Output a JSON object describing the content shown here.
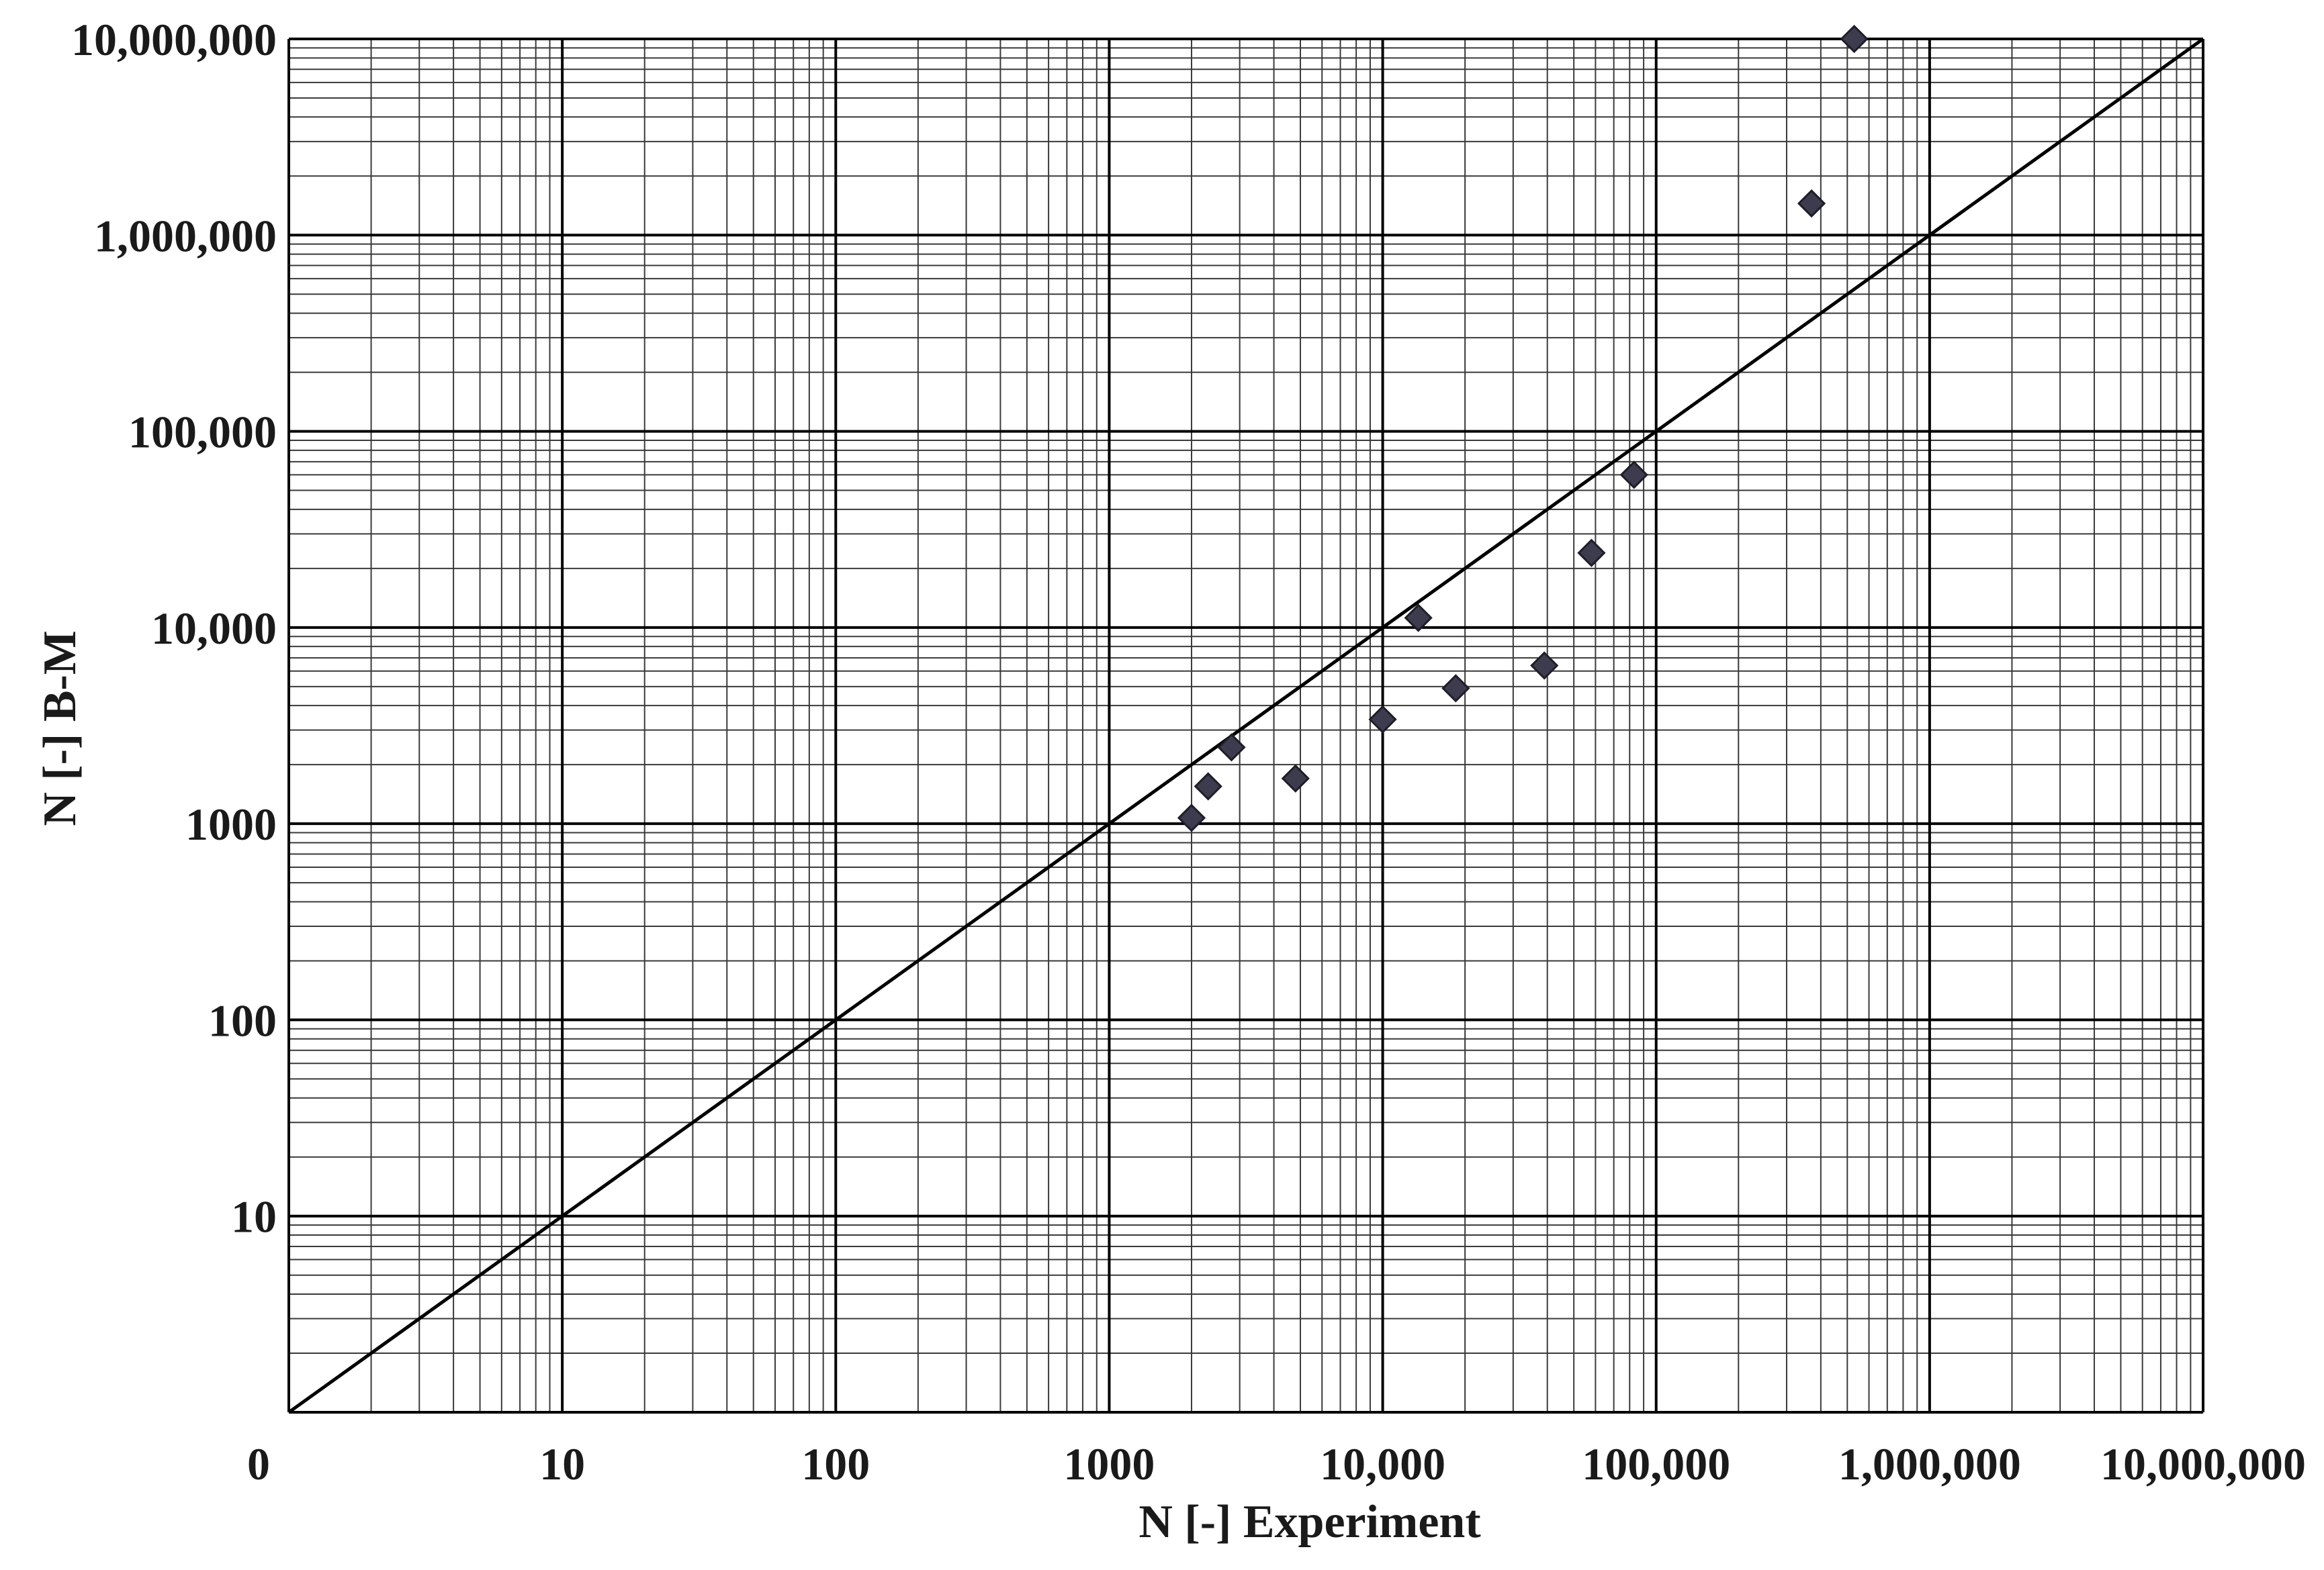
{
  "chart_data": {
    "type": "scatter",
    "xlabel": "N [-]  Experiment",
    "ylabel": "N [-]  B-M",
    "x_scale": "log",
    "y_scale": "log",
    "xlim": [
      1,
      10000000
    ],
    "ylim": [
      1,
      10000000
    ],
    "x_tick_labels": [
      "0",
      "10",
      "100",
      "1000",
      "10,000",
      "100,000",
      "1,000,000",
      "10,000,000"
    ],
    "y_tick_labels": [
      "10",
      "100",
      "1000",
      "10,000",
      "100,000",
      "1,000,000",
      "10,000,000"
    ],
    "grid": true,
    "reference_line": {
      "type": "y=x",
      "color": "#000000"
    },
    "marker": {
      "shape": "diamond",
      "color": "#3c3c4e"
    },
    "series": [
      {
        "points": [
          {
            "x": 2000,
            "y": 1070
          },
          {
            "x": 2300,
            "y": 1550
          },
          {
            "x": 2800,
            "y": 2450
          },
          {
            "x": 4800,
            "y": 1700
          },
          {
            "x": 10000,
            "y": 3400
          },
          {
            "x": 13500,
            "y": 11200
          },
          {
            "x": 18500,
            "y": 4900
          },
          {
            "x": 39000,
            "y": 6400
          },
          {
            "x": 58000,
            "y": 24000
          },
          {
            "x": 83000,
            "y": 60000
          },
          {
            "x": 370000,
            "y": 1450000
          },
          {
            "x": 530000,
            "y": 10000000
          }
        ]
      }
    ]
  }
}
